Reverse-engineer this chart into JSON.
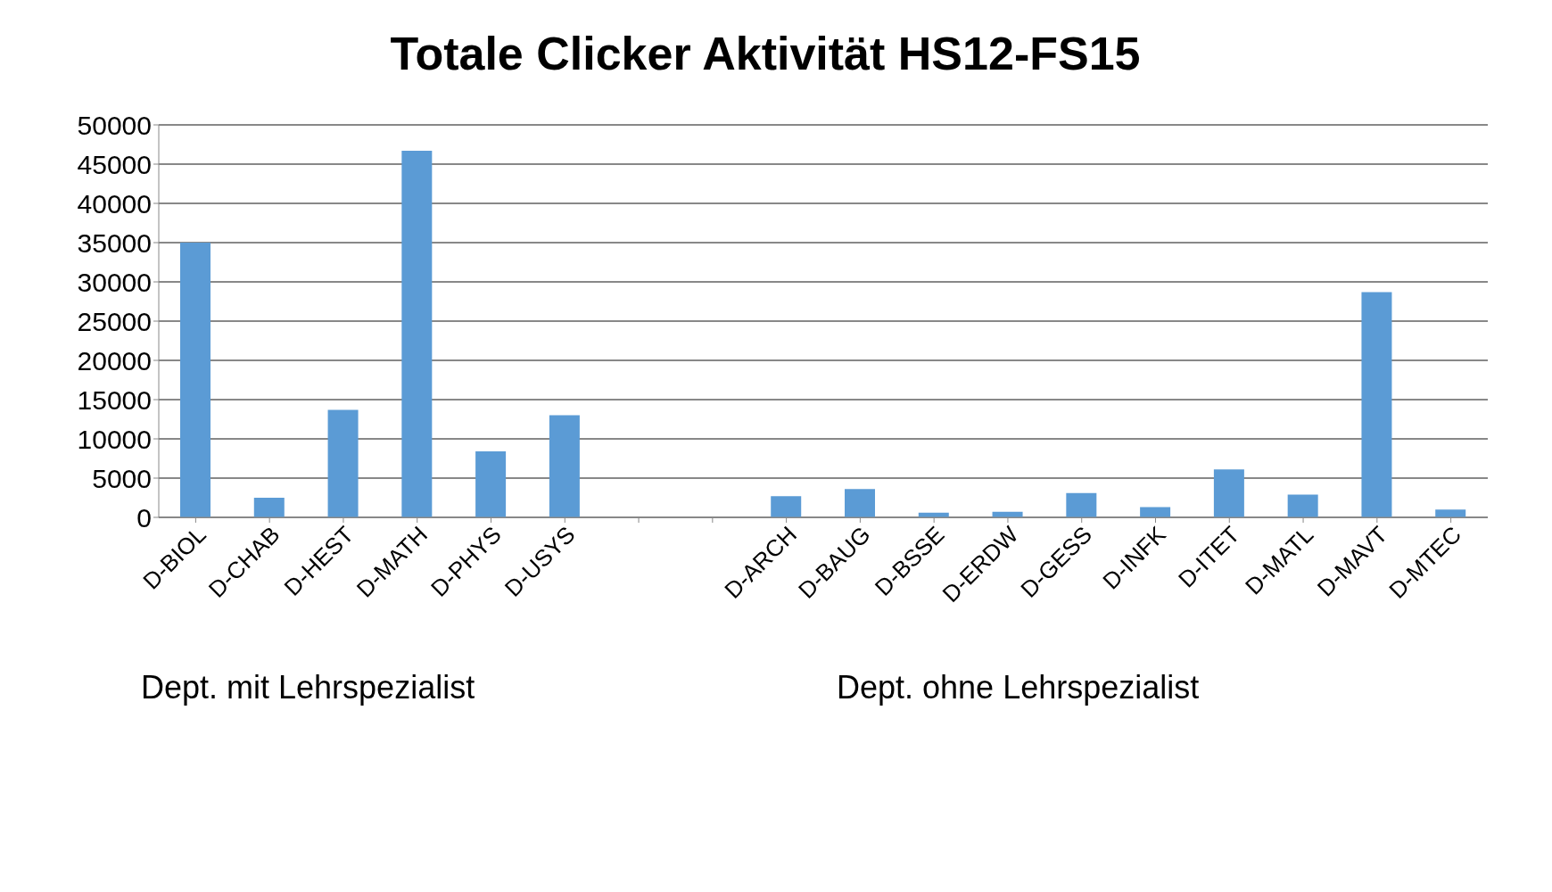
{
  "chart_data": {
    "type": "bar",
    "title": "Totale Clicker Aktivität HS12-FS15",
    "categories": [
      "D-BIOL",
      "D-CHAB",
      "D-HEST",
      "D-MATH",
      "D-PHYS",
      "D-USYS",
      null,
      null,
      "D-ARCH",
      "D-BAUG",
      "D-BSSE",
      "D-ERDW",
      "D-GESS",
      "D-INFK",
      "D-ITET",
      "D-MATL",
      "D-MAVT",
      "D-MTEC"
    ],
    "values": [
      35000,
      2500,
      13700,
      46700,
      8400,
      13000,
      null,
      null,
      2700,
      3600,
      600,
      700,
      3100,
      1300,
      6100,
      2900,
      28700,
      1000
    ],
    "color": "#5b9bd5",
    "ylim": [
      0,
      50000
    ],
    "yticks": [
      0,
      5000,
      10000,
      15000,
      20000,
      25000,
      30000,
      35000,
      40000,
      45000,
      50000
    ],
    "grid": "y",
    "annotations": [
      "Dept. mit Lehrspezialist",
      "Dept. ohne Lehrspezialist"
    ]
  }
}
